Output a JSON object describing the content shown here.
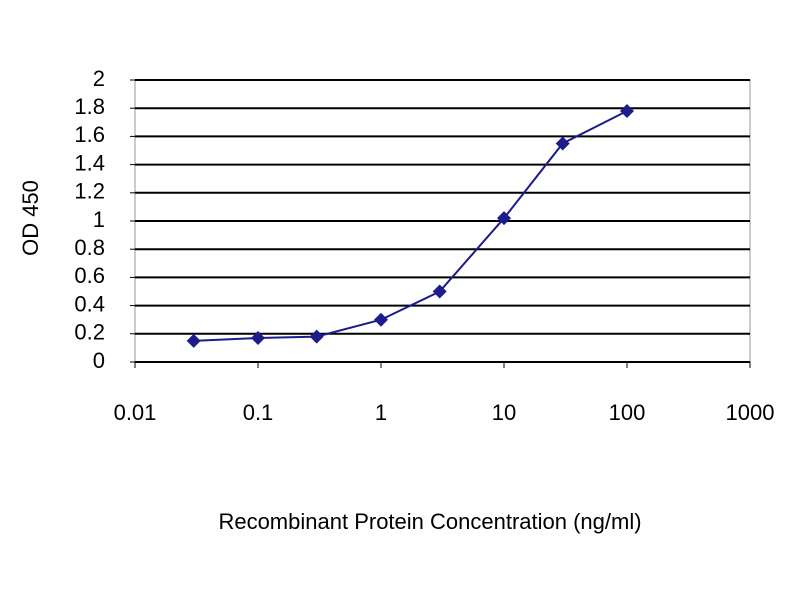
{
  "chart_data": {
    "type": "line",
    "xlabel": "Recombinant Protein Concentration (ng/ml)",
    "ylabel": "OD 450",
    "x": [
      0.03,
      0.1,
      0.3,
      1,
      3,
      10,
      30,
      100
    ],
    "series": [
      {
        "color": "#1c1c8c",
        "values": [
          0.15,
          0.17,
          0.18,
          0.3,
          0.5,
          1.02,
          1.55,
          1.78
        ]
      }
    ],
    "xscale": "log",
    "xlim": [
      0.01,
      1000
    ],
    "xticks": [
      0.01,
      0.1,
      1,
      10,
      100,
      1000
    ],
    "ylim": [
      0,
      2
    ],
    "yticks": [
      0,
      0.2,
      0.4,
      0.6,
      0.8,
      1,
      1.2,
      1.4,
      1.6,
      1.8,
      2
    ],
    "grid": true
  }
}
